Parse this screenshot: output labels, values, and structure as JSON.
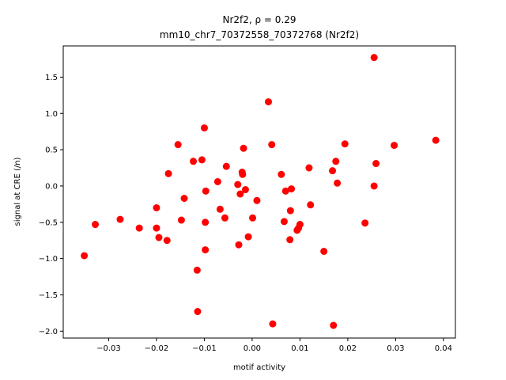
{
  "chart_data": {
    "type": "scatter",
    "title_line1": "Nr2f2, ρ = 0.29",
    "title_line2": "mm10_chr7_70372558_70372768 (Nr2f2)",
    "xlabel": "motif activity",
    "ylabel": "signal at CRE (/n)",
    "xlim": [
      -0.0395,
      0.0425
    ],
    "ylim": [
      -2.095,
      1.93
    ],
    "xticks": [
      -0.03,
      -0.02,
      -0.01,
      0.0,
      0.01,
      0.02,
      0.03,
      0.04
    ],
    "xtick_labels": [
      "−0.03",
      "−0.02",
      "−0.01",
      "0.00",
      "0.01",
      "0.02",
      "0.03",
      "0.04"
    ],
    "yticks": [
      -2.0,
      -1.5,
      -1.0,
      -0.5,
      0.0,
      0.5,
      1.0,
      1.5
    ],
    "ytick_labels": [
      "−2.0",
      "−1.5",
      "−1.0",
      "−0.5",
      "0.0",
      "0.5",
      "1.0",
      "1.5"
    ],
    "grid": false,
    "marker_color": "#ff0000",
    "points": [
      {
        "x": -0.0351,
        "y": -0.96
      },
      {
        "x": -0.0328,
        "y": -0.53
      },
      {
        "x": -0.0276,
        "y": -0.46
      },
      {
        "x": -0.0236,
        "y": -0.58
      },
      {
        "x": -0.02,
        "y": -0.58
      },
      {
        "x": -0.02,
        "y": -0.3
      },
      {
        "x": -0.0195,
        "y": -0.71
      },
      {
        "x": -0.0178,
        "y": -0.75
      },
      {
        "x": -0.0175,
        "y": 0.17
      },
      {
        "x": -0.0155,
        "y": 0.57
      },
      {
        "x": -0.0148,
        "y": -0.47
      },
      {
        "x": -0.0142,
        "y": -0.17
      },
      {
        "x": -0.0123,
        "y": 0.34
      },
      {
        "x": -0.0115,
        "y": -1.16
      },
      {
        "x": -0.0114,
        "y": -1.73
      },
      {
        "x": -0.0105,
        "y": 0.36
      },
      {
        "x": -0.01,
        "y": 0.8
      },
      {
        "x": -0.0098,
        "y": -0.5
      },
      {
        "x": -0.0098,
        "y": -0.88
      },
      {
        "x": -0.0097,
        "y": -0.07
      },
      {
        "x": -0.0072,
        "y": 0.06
      },
      {
        "x": -0.0067,
        "y": -0.32
      },
      {
        "x": -0.0057,
        "y": -0.44
      },
      {
        "x": -0.0054,
        "y": 0.27
      },
      {
        "x": -0.003,
        "y": 0.02
      },
      {
        "x": -0.0028,
        "y": -0.81
      },
      {
        "x": -0.0025,
        "y": -0.11
      },
      {
        "x": -0.0021,
        "y": 0.19
      },
      {
        "x": -0.002,
        "y": 0.16
      },
      {
        "x": -0.0018,
        "y": 0.52
      },
      {
        "x": -0.0014,
        "y": -0.05
      },
      {
        "x": -0.0008,
        "y": -0.7
      },
      {
        "x": 0.0001,
        "y": -0.44
      },
      {
        "x": 0.001,
        "y": -0.2
      },
      {
        "x": 0.0034,
        "y": 1.16
      },
      {
        "x": 0.0041,
        "y": 0.57
      },
      {
        "x": 0.0043,
        "y": -1.9
      },
      {
        "x": 0.0061,
        "y": 0.16
      },
      {
        "x": 0.0067,
        "y": -0.49
      },
      {
        "x": 0.007,
        "y": -0.07
      },
      {
        "x": 0.0079,
        "y": -0.74
      },
      {
        "x": 0.008,
        "y": -0.34
      },
      {
        "x": 0.0082,
        "y": -0.04
      },
      {
        "x": 0.0094,
        "y": -0.61
      },
      {
        "x": 0.0097,
        "y": -0.58
      },
      {
        "x": 0.01,
        "y": -0.53
      },
      {
        "x": 0.0119,
        "y": 0.25
      },
      {
        "x": 0.0122,
        "y": -0.26
      },
      {
        "x": 0.015,
        "y": -0.9
      },
      {
        "x": 0.0168,
        "y": 0.21
      },
      {
        "x": 0.017,
        "y": -1.92
      },
      {
        "x": 0.0175,
        "y": 0.34
      },
      {
        "x": 0.0178,
        "y": 0.04
      },
      {
        "x": 0.0194,
        "y": 0.58
      },
      {
        "x": 0.0236,
        "y": -0.51
      },
      {
        "x": 0.0255,
        "y": 1.77
      },
      {
        "x": 0.0255,
        "y": 0.0
      },
      {
        "x": 0.0259,
        "y": 0.31
      },
      {
        "x": 0.0297,
        "y": 0.56
      },
      {
        "x": 0.0384,
        "y": 0.63
      }
    ]
  }
}
